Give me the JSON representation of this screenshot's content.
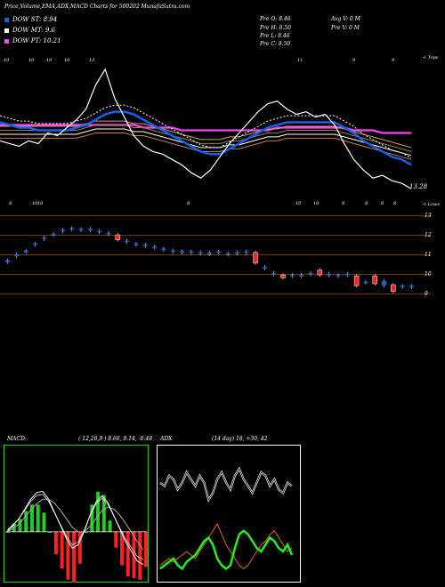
{
  "title": "Price,Volume,EMA,ADX,MACD Charts for 500202  MunafaSutra.com",
  "legend": [
    {
      "label": "DOW ST: 8.94",
      "color": "#1560f0"
    },
    {
      "label": "DOW MT: 9.6",
      "color": "#ffffff"
    },
    {
      "label": "DOW PT: 10.21",
      "color": "#ff40ff"
    }
  ],
  "price_info": {
    "open": "Pre   O: 8.46",
    "high": "Pre   H: 8.50",
    "low": "Pre   L: 8.46",
    "close": "Pre   C: 8.50",
    "avg_vol": "Avg V: 0   M",
    "pre_vol": "Pre   V: 0   M"
  },
  "ema_panel": {
    "top_label": "< Tops",
    "bottom_label": "< Lows",
    "last_value": "13.28",
    "top_marks": [
      "10",
      "10",
      "10",
      "10",
      "13",
      "11",
      "9",
      "9"
    ],
    "bottom_marks": [
      "8",
      "10",
      "10",
      "8",
      "10",
      "10",
      "8",
      "8",
      "8",
      "8"
    ]
  },
  "candle_panel": {
    "price_levels": [
      "13",
      "12",
      "11",
      "10",
      "9"
    ]
  },
  "macd": {
    "label": "MACD:",
    "params": "( 12,26,9 ) 8.66, 9.14, -0.48",
    "colors": {
      "panel_border": "#22cc22",
      "fast": "#ffffff",
      "slow": "#aaaaaa",
      "hist_pos": "#22cc22",
      "hist_neg": "#ff2020"
    }
  },
  "adx": {
    "label": "ADX",
    "params": "(14  day) 18,  +30,  42",
    "colors": {
      "dx": "#ffffff",
      "plus_di": "#22ee22",
      "minus_di": "#e07000"
    }
  },
  "chart_data": {
    "type": "line",
    "title": "Price,Volume,EMA,ADX,MACD Charts for 500202  MunafaSutra.com",
    "price_close": [
      11.9,
      11.8,
      11.7,
      11.9,
      11.8,
      12.2,
      12.1,
      12.4,
      12.7,
      13.1,
      14.0,
      14.6,
      13.5,
      12.8,
      12.1,
      11.7,
      11.5,
      11.4,
      11.2,
      11.0,
      10.7,
      10.5,
      10.8,
      11.3,
      11.8,
      12.2,
      12.6,
      13.0,
      13.3,
      13.4,
      13.1,
      12.9,
      13.0,
      12.8,
      12.9,
      12.5,
      11.8,
      11.2,
      10.8,
      10.5,
      10.6,
      10.4,
      10.3,
      10.1
    ],
    "ema_fast": [
      12.6,
      12.5,
      12.4,
      12.4,
      12.3,
      12.3,
      12.3,
      12.3,
      12.4,
      12.5,
      12.7,
      12.9,
      13.0,
      13.0,
      12.9,
      12.7,
      12.5,
      12.3,
      12.1,
      11.9,
      11.7,
      11.5,
      11.4,
      11.4,
      11.6,
      11.8,
      12.0,
      12.2,
      12.4,
      12.5,
      12.6,
      12.6,
      12.6,
      12.6,
      12.6,
      12.6,
      12.4,
      12.2,
      11.9,
      11.7,
      11.5,
      11.3,
      11.2,
      11.0
    ],
    "ema_mid": [
      12.3,
      12.3,
      12.3,
      12.3,
      12.3,
      12.3,
      12.3,
      12.3,
      12.3,
      12.4,
      12.5,
      12.5,
      12.5,
      12.5,
      12.4,
      12.4,
      12.3,
      12.2,
      12.1,
      12.0,
      11.9,
      11.8,
      11.8,
      11.8,
      11.9,
      11.9,
      12.0,
      12.1,
      12.2,
      12.2,
      12.3,
      12.3,
      12.3,
      12.3,
      12.3,
      12.3,
      12.2,
      12.1,
      12.0,
      11.9,
      11.8,
      11.7,
      11.6,
      11.5
    ],
    "ema_slow": [
      12.5,
      12.5,
      12.5,
      12.5,
      12.5,
      12.5,
      12.5,
      12.5,
      12.5,
      12.5,
      12.5,
      12.5,
      12.5,
      12.5,
      12.5,
      12.4,
      12.4,
      12.4,
      12.4,
      12.3,
      12.3,
      12.3,
      12.3,
      12.3,
      12.3,
      12.3,
      12.3,
      12.3,
      12.3,
      12.4,
      12.4,
      12.4,
      12.4,
      12.4,
      12.4,
      12.4,
      12.4,
      12.3,
      12.3,
      12.3,
      12.2,
      12.2,
      12.2,
      12.2
    ],
    "candles": [
      {
        "o": 10.6,
        "c": 10.7,
        "up": true
      },
      {
        "o": 10.9,
        "c": 11.0,
        "up": true
      },
      {
        "o": 11.1,
        "c": 11.2,
        "up": true
      },
      {
        "o": 11.5,
        "c": 11.55,
        "up": true
      },
      {
        "o": 11.8,
        "c": 11.85,
        "up": true
      },
      {
        "o": 12.0,
        "c": 12.05,
        "up": true
      },
      {
        "o": 12.2,
        "c": 12.25,
        "up": true
      },
      {
        "o": 12.3,
        "c": 12.35,
        "up": true
      },
      {
        "o": 12.3,
        "c": 12.3,
        "up": true
      },
      {
        "o": 12.25,
        "c": 12.3,
        "up": true
      },
      {
        "o": 12.15,
        "c": 12.2,
        "up": true
      },
      {
        "o": 12.05,
        "c": 12.1,
        "up": true
      },
      {
        "o": 12.0,
        "c": 11.75,
        "up": false
      },
      {
        "o": 11.65,
        "c": 11.7,
        "up": true
      },
      {
        "o": 11.55,
        "c": 11.55,
        "up": true
      },
      {
        "o": 11.45,
        "c": 11.5,
        "up": true
      },
      {
        "o": 11.35,
        "c": 11.4,
        "up": true
      },
      {
        "o": 11.25,
        "c": 11.3,
        "up": true
      },
      {
        "o": 11.2,
        "c": 11.2,
        "up": true
      },
      {
        "o": 11.15,
        "c": 11.15,
        "up": true
      },
      {
        "o": 11.1,
        "c": 11.15,
        "up": true
      },
      {
        "o": 11.05,
        "c": 11.1,
        "up": true
      },
      {
        "o": 11.0,
        "c": 11.1,
        "up": true
      },
      {
        "o": 11.1,
        "c": 11.15,
        "up": true
      },
      {
        "o": 11.0,
        "c": 11.05,
        "up": true
      },
      {
        "o": 11.05,
        "c": 11.1,
        "up": true
      },
      {
        "o": 11.1,
        "c": 11.15,
        "up": true
      },
      {
        "o": 11.1,
        "c": 10.55,
        "up": false
      },
      {
        "o": 10.3,
        "c": 10.35,
        "up": true
      },
      {
        "o": 10.0,
        "c": 10.05,
        "up": true
      },
      {
        "o": 9.95,
        "c": 9.8,
        "up": false
      },
      {
        "o": 9.95,
        "c": 9.95,
        "up": true
      },
      {
        "o": 9.95,
        "c": 9.95,
        "up": true
      },
      {
        "o": 10.0,
        "c": 10.05,
        "up": true
      },
      {
        "o": 10.2,
        "c": 9.95,
        "up": false
      },
      {
        "o": 9.95,
        "c": 10.0,
        "up": true
      },
      {
        "o": 9.95,
        "c": 9.95,
        "up": true
      },
      {
        "o": 9.95,
        "c": 10.0,
        "up": true
      },
      {
        "o": 9.9,
        "c": 9.4,
        "up": false
      },
      {
        "o": 9.6,
        "c": 9.6,
        "up": true
      },
      {
        "o": 9.9,
        "c": 9.5,
        "up": false
      },
      {
        "o": 9.65,
        "c": 9.4,
        "up": true
      },
      {
        "o": 9.45,
        "c": 9.1,
        "up": false
      },
      {
        "o": 9.35,
        "c": 9.4,
        "up": true
      },
      {
        "o": 9.35,
        "c": 9.4,
        "up": true
      }
    ],
    "macd_line": [
      0.0,
      0.1,
      0.2,
      0.35,
      0.5,
      0.6,
      0.62,
      0.5,
      0.3,
      0.1,
      -0.1,
      -0.25,
      -0.2,
      0.0,
      0.25,
      0.45,
      0.55,
      0.45,
      0.25,
      0.05,
      -0.15,
      -0.3,
      -0.45,
      -0.5
    ],
    "macd_signal": [
      0.0,
      0.05,
      0.12,
      0.22,
      0.33,
      0.43,
      0.5,
      0.5,
      0.44,
      0.33,
      0.2,
      0.07,
      0.0,
      0.0,
      0.08,
      0.2,
      0.32,
      0.38,
      0.35,
      0.26,
      0.13,
      -0.01,
      -0.15,
      -0.28
    ],
    "adx_dx": [
      40,
      38,
      44,
      42,
      36,
      40,
      46,
      42,
      38,
      44,
      40,
      30,
      34,
      42,
      46,
      40,
      36,
      44,
      48,
      42,
      38,
      34,
      40,
      46,
      44,
      38,
      42,
      36,
      34,
      40,
      38
    ],
    "adx_plus_di": [
      8,
      10,
      12,
      14,
      10,
      8,
      12,
      14,
      16,
      20,
      24,
      26,
      22,
      14,
      10,
      8,
      10,
      20,
      28,
      30,
      28,
      24,
      20,
      18,
      22,
      26,
      24,
      20,
      18,
      22,
      16
    ],
    "adx_minus_di": [
      10,
      12,
      14,
      12,
      14,
      16,
      18,
      16,
      14,
      18,
      22,
      26,
      30,
      34,
      28,
      22,
      18,
      14,
      10,
      8,
      10,
      14,
      18,
      22,
      24,
      28,
      30,
      26,
      22,
      18,
      20
    ]
  }
}
